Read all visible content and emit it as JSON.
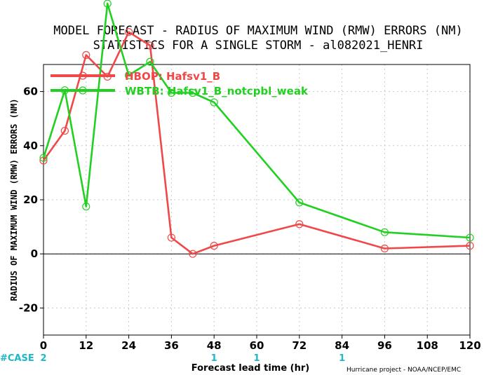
{
  "chart_data": {
    "type": "line",
    "title_lines": [
      "MODEL FORECAST - RADIUS OF MAXIMUM WIND (RMW) ERRORS (NM)",
      "STATISTICS FOR A SINGLE STORM - al082021_HENRI"
    ],
    "xlabel": "Forecast lead time (hr)",
    "ylabel": "RADIUS OF MAXIMUM WIND (RMW) ERRORS (NM)",
    "credit": "Hurricane project - NOAA/NCEP/EMC",
    "xlim": [
      0,
      120
    ],
    "ylim": [
      -30,
      70
    ],
    "x_ticks": [
      0,
      12,
      24,
      36,
      48,
      60,
      72,
      84,
      96,
      108,
      120
    ],
    "y_ticks": [
      -20,
      0,
      20,
      40,
      60
    ],
    "zero_line": true,
    "grid": true,
    "legend_position": "top-left",
    "case_label": "#CASE",
    "case_counts": [
      {
        "x": 0,
        "n": "2"
      },
      {
        "x": 48,
        "n": "1"
      },
      {
        "x": 60,
        "n": "1"
      },
      {
        "x": 84,
        "n": "1"
      }
    ],
    "series": [
      {
        "name": "HBOP: Hafsv1_B",
        "color": "#f04848",
        "points": [
          [
            0,
            34.5
          ],
          [
            6,
            45.5
          ],
          [
            12,
            73.5
          ],
          [
            18,
            65.5
          ],
          [
            24,
            82
          ],
          [
            30,
            77
          ],
          [
            36,
            6
          ],
          [
            42,
            0
          ],
          [
            48,
            3
          ],
          [
            72,
            11
          ],
          [
            96,
            2
          ],
          [
            120,
            3
          ]
        ]
      },
      {
        "name": "WBTB: Hafsv1_B_notcpbl_weak",
        "color": "#22d022",
        "points": [
          [
            0,
            35.5
          ],
          [
            6,
            60.5
          ],
          [
            12,
            17.5
          ],
          [
            18,
            92.5
          ],
          [
            24,
            66
          ],
          [
            30,
            71
          ],
          [
            36,
            59.5
          ],
          [
            42,
            59.5
          ],
          [
            48,
            56
          ],
          [
            72,
            19
          ],
          [
            96,
            8
          ],
          [
            120,
            6
          ]
        ]
      }
    ]
  }
}
